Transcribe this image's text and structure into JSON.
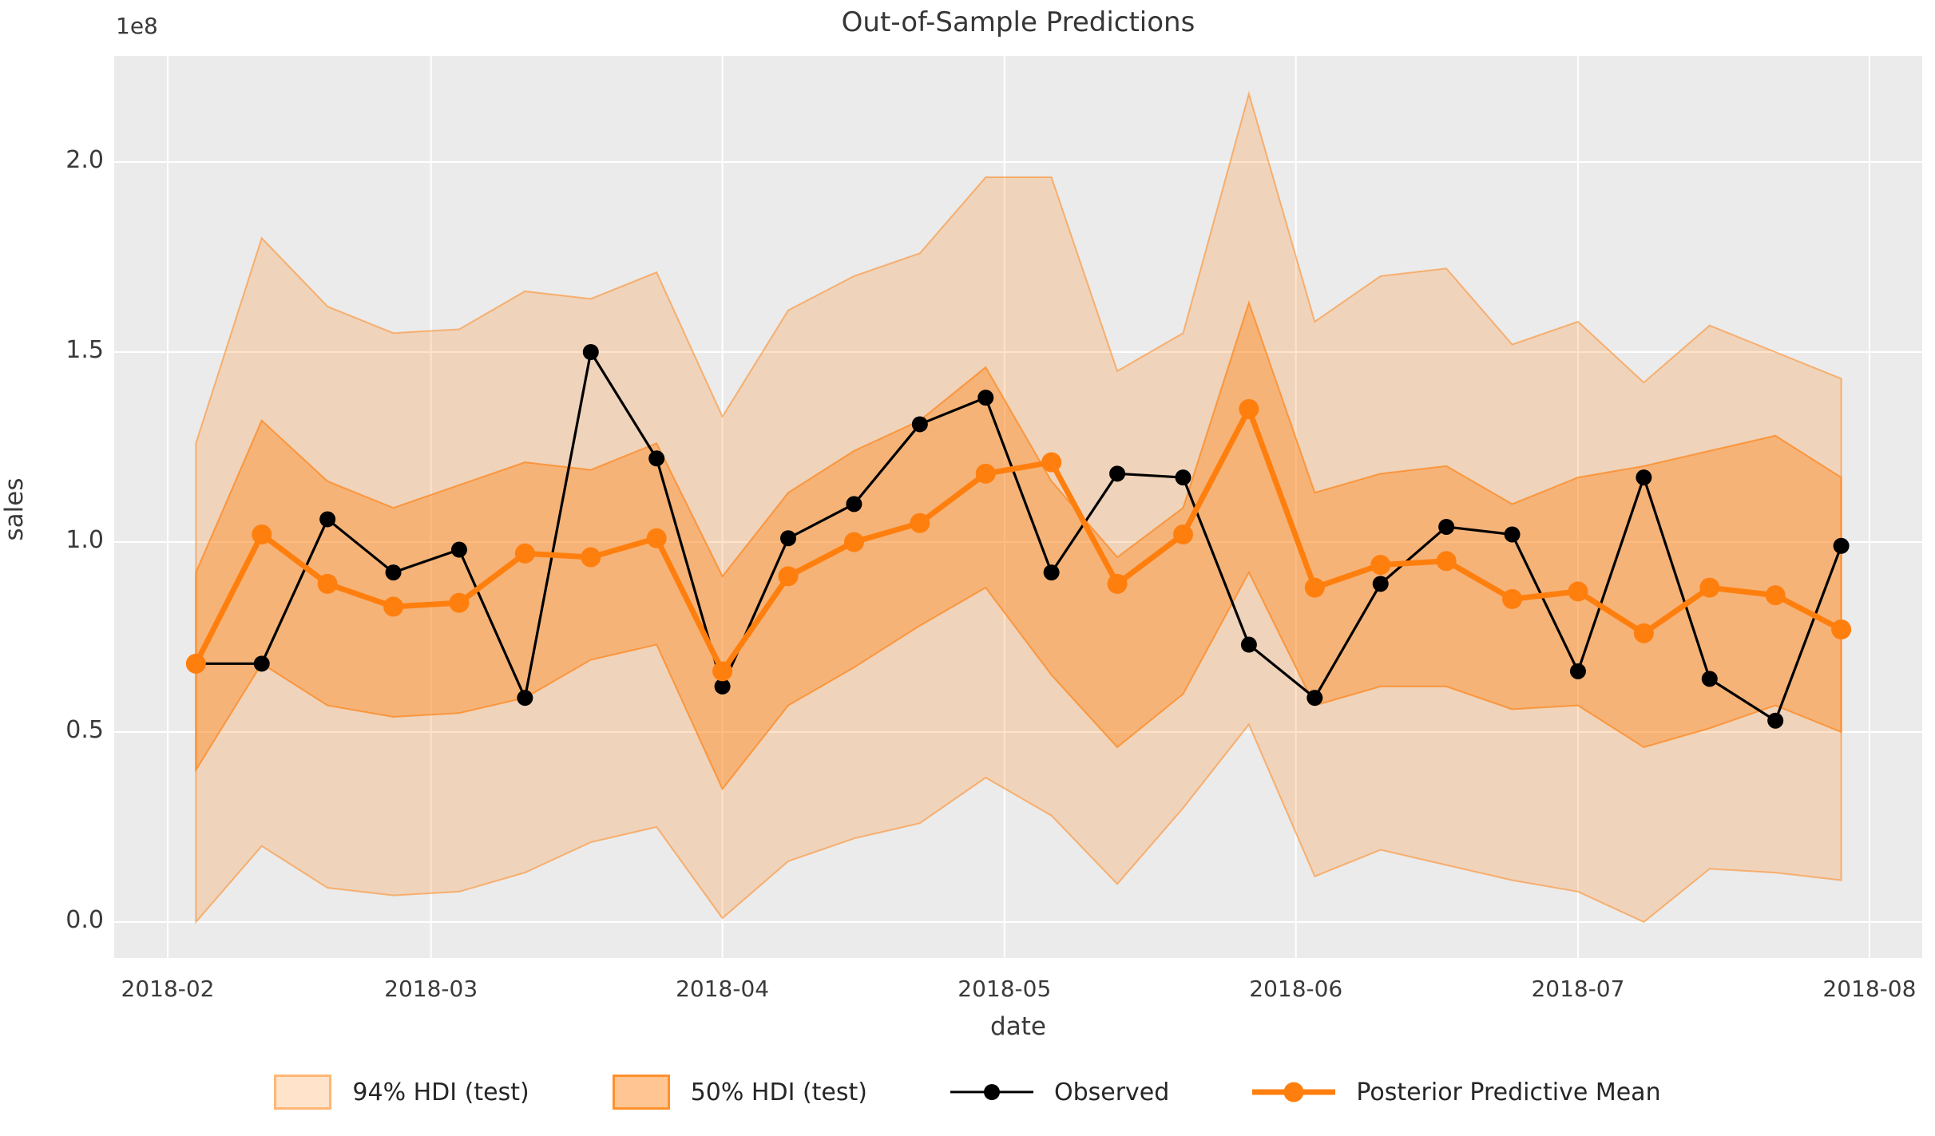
{
  "chart_data": {
    "type": "line",
    "title": "Out-of-Sample Predictions",
    "xlabel": "date",
    "ylabel": "sales",
    "offset_label": "1e8",
    "grid": true,
    "legend_position": "bottom",
    "axes_background": "#ebebeb",
    "grid_color": "#ffffff",
    "accent_color": "#ff7f0e",
    "observed_color": "#000000",
    "ylim": [
      -0.095,
      2.28
    ],
    "y_unit": "1e8",
    "x": [
      "2018-02-04",
      "2018-02-11",
      "2018-02-18",
      "2018-02-25",
      "2018-03-04",
      "2018-03-11",
      "2018-03-18",
      "2018-03-25",
      "2018-04-01",
      "2018-04-08",
      "2018-04-15",
      "2018-04-22",
      "2018-04-29",
      "2018-05-06",
      "2018-05-13",
      "2018-05-20",
      "2018-05-27",
      "2018-06-03",
      "2018-06-10",
      "2018-06-17",
      "2018-06-24",
      "2018-07-01",
      "2018-07-08",
      "2018-07-15",
      "2018-07-22",
      "2018-07-29"
    ],
    "series": [
      {
        "name": "Observed",
        "color": "#000000",
        "line_width": 3.2,
        "marker_radius": 10,
        "values": [
          0.68,
          0.68,
          1.06,
          0.92,
          0.98,
          0.59,
          1.5,
          1.22,
          0.62,
          1.01,
          1.1,
          1.31,
          1.38,
          0.92,
          1.18,
          1.17,
          0.73,
          0.59,
          0.89,
          1.04,
          1.02,
          0.66,
          1.17,
          0.64,
          0.53,
          0.99
        ]
      },
      {
        "name": "Posterior Predictive Mean",
        "color": "#ff7f0e",
        "line_width": 7,
        "marker_radius": 12.5,
        "values": [
          0.68,
          1.02,
          0.89,
          0.83,
          0.84,
          0.97,
          0.96,
          1.01,
          0.66,
          0.91,
          1.0,
          1.05,
          1.18,
          1.21,
          0.89,
          1.02,
          1.35,
          0.88,
          0.94,
          0.95,
          0.85,
          0.87,
          0.76,
          0.88,
          0.86,
          0.77
        ]
      }
    ],
    "bands": [
      {
        "name": "94% HDI (test)",
        "fill_opacity": 0.22,
        "edge_opacity": 0.5,
        "lower": [
          0.0,
          0.2,
          0.09,
          0.07,
          0.08,
          0.13,
          0.21,
          0.25,
          0.01,
          0.16,
          0.22,
          0.26,
          0.38,
          0.28,
          0.1,
          0.3,
          0.52,
          0.12,
          0.19,
          0.15,
          0.11,
          0.08,
          0.0,
          0.14,
          0.13,
          0.11
        ],
        "upper": [
          1.26,
          1.8,
          1.62,
          1.55,
          1.56,
          1.66,
          1.64,
          1.71,
          1.33,
          1.61,
          1.7,
          1.76,
          1.96,
          1.96,
          1.45,
          1.55,
          2.18,
          1.58,
          1.7,
          1.72,
          1.52,
          1.58,
          1.42,
          1.57,
          1.5,
          1.43
        ]
      },
      {
        "name": "50% HDI (test)",
        "fill_opacity": 0.38,
        "edge_opacity": 0.65,
        "lower": [
          0.4,
          0.68,
          0.57,
          0.54,
          0.55,
          0.59,
          0.69,
          0.73,
          0.35,
          0.57,
          0.67,
          0.78,
          0.88,
          0.65,
          0.46,
          0.6,
          0.92,
          0.57,
          0.62,
          0.62,
          0.56,
          0.57,
          0.46,
          0.51,
          0.57,
          0.5
        ],
        "upper": [
          0.92,
          1.32,
          1.16,
          1.09,
          1.15,
          1.21,
          1.19,
          1.26,
          0.91,
          1.13,
          1.24,
          1.32,
          1.46,
          1.16,
          0.96,
          1.09,
          1.63,
          1.13,
          1.18,
          1.2,
          1.1,
          1.17,
          1.2,
          1.24,
          1.28,
          1.17
        ]
      }
    ],
    "x_axis": {
      "ticks": [
        {
          "date": "2018-02-01",
          "label": "2018-02"
        },
        {
          "date": "2018-03-01",
          "label": "2018-03"
        },
        {
          "date": "2018-04-01",
          "label": "2018-04"
        },
        {
          "date": "2018-05-01",
          "label": "2018-05"
        },
        {
          "date": "2018-06-01",
          "label": "2018-06"
        },
        {
          "date": "2018-07-01",
          "label": "2018-07"
        },
        {
          "date": "2018-08-01",
          "label": "2018-08"
        }
      ]
    },
    "y_axis": {
      "ticks": [
        {
          "value": 0.0,
          "label": "0.0"
        },
        {
          "value": 0.5,
          "label": "0.5"
        },
        {
          "value": 1.0,
          "label": "1.0"
        },
        {
          "value": 1.5,
          "label": "1.5"
        },
        {
          "value": 2.0,
          "label": "2.0"
        }
      ]
    },
    "legend": [
      {
        "kind": "patch",
        "label": "94% HDI (test)",
        "fill": "#fce3cc",
        "edge": "#f8c79d"
      },
      {
        "kind": "patch",
        "label": "50% HDI (test)",
        "fill": "#fbc globally",
        "edge": "#f5a55f"
      },
      {
        "kind": "line-dot",
        "label": "Observed",
        "color": "#000000",
        "thickness": 3.2,
        "dot": 20
      },
      {
        "kind": "line-dot",
        "label": "Posterior Predictive Mean",
        "color": "#ff7f0e",
        "thickness": 7,
        "dot": 25
      }
    ]
  }
}
